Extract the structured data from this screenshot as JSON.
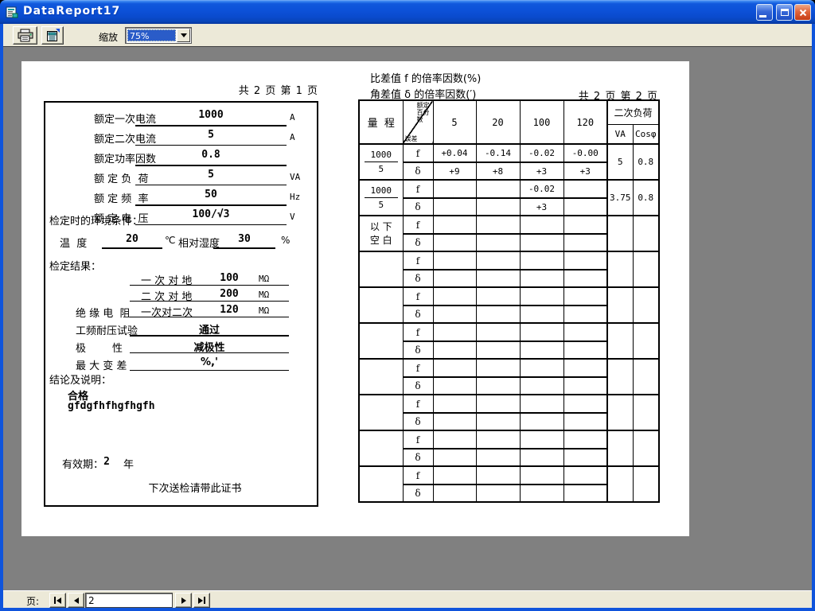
{
  "window": {
    "title": "DataReport17"
  },
  "toolbar": {
    "zoom_label": "缩放",
    "zoom_value": "75%"
  },
  "page1": {
    "indicator": "共 2 页 第 1 页",
    "rated_fields": [
      {
        "label": "额定一次电流",
        "value": "1000",
        "unit": "A"
      },
      {
        "label": "额定二次电流",
        "value": "5",
        "unit": "A"
      },
      {
        "label": "额定功率因数",
        "value": "0.8",
        "unit": ""
      },
      {
        "label": "额 定 负  荷",
        "value": "5",
        "unit": "VA"
      },
      {
        "label": "额 定 频  率",
        "value": "50",
        "unit": "Hz"
      },
      {
        "label": "额 定 电  压",
        "value": "100/√3",
        "unit": "V"
      }
    ],
    "env_title": "检定时的环境条件：",
    "env": {
      "temp_label": "温  度",
      "temp_value": "20",
      "temp_unit": "℃",
      "hum_label": "相对湿度",
      "hum_value": "30",
      "hum_unit": "%"
    },
    "result_title": "检定结果：",
    "insulation_label": "绝 缘 电  阻",
    "insulation_rows": [
      {
        "label": "一 次 对 地",
        "value": "100",
        "unit": "MΩ"
      },
      {
        "label": "二 次 对 地",
        "value": "200",
        "unit": "MΩ"
      },
      {
        "label": "一次对二次",
        "value": "120",
        "unit": "MΩ"
      }
    ],
    "result_rows": [
      {
        "label": "工频耐压试验",
        "value": "通过"
      },
      {
        "label": "极        性",
        "value": "减极性"
      },
      {
        "label": "最 大 变 差",
        "value": "%,'"
      }
    ],
    "conclusion_title": "结论及说明：",
    "conclusion_lines": [
      "合格",
      "gfdgfhfhgfhgfh"
    ],
    "validity_label": "有效期：",
    "validity_value": "2",
    "validity_unit": "年",
    "footer_note": "下次送检请带此证书"
  },
  "page2": {
    "title_line1": "比差值 f 的倍率因数(%)",
    "title_line2": "角差值 δ 的倍率因数(′)",
    "indicator": "共 2 页 第 2 页",
    "table": {
      "range_header": "量  程",
      "diag_top": "额定百分数",
      "diag_bottom": "误差",
      "percent_cols": [
        "5",
        "20",
        "100",
        "120"
      ],
      "load_header": "二次负荷",
      "load_cols": [
        "VA",
        "Cosφ"
      ],
      "f_label": "f",
      "d_label": "δ",
      "rows": [
        {
          "range_top": "1000",
          "range_bottom": "5",
          "f": [
            "+0.04",
            "-0.14",
            "-0.02",
            "-0.00"
          ],
          "d": [
            "+9",
            "+8",
            "+3",
            "+3"
          ],
          "va": "5",
          "cos": "0.8"
        },
        {
          "range_top": "1000",
          "range_bottom": "5",
          "f": [
            "",
            "",
            "-0.02",
            ""
          ],
          "d": [
            "",
            "",
            "+3",
            ""
          ],
          "va": "3.75",
          "cos": "0.8"
        },
        {
          "range_note": "以 下\n空 白",
          "f": [
            "",
            "",
            "",
            ""
          ],
          "d": [
            "",
            "",
            "",
            ""
          ],
          "va": "",
          "cos": ""
        },
        {
          "f": [
            "",
            "",
            "",
            ""
          ],
          "d": [
            "",
            "",
            "",
            ""
          ],
          "va": "",
          "cos": ""
        },
        {
          "f": [
            "",
            "",
            "",
            ""
          ],
          "d": [
            "",
            "",
            "",
            ""
          ],
          "va": "",
          "cos": ""
        },
        {
          "f": [
            "",
            "",
            "",
            ""
          ],
          "d": [
            "",
            "",
            "",
            ""
          ],
          "va": "",
          "cos": ""
        },
        {
          "f": [
            "",
            "",
            "",
            ""
          ],
          "d": [
            "",
            "",
            "",
            ""
          ],
          "va": "",
          "cos": ""
        },
        {
          "f": [
            "",
            "",
            "",
            ""
          ],
          "d": [
            "",
            "",
            "",
            ""
          ],
          "va": "",
          "cos": ""
        },
        {
          "f": [
            "",
            "",
            "",
            ""
          ],
          "d": [
            "",
            "",
            "",
            ""
          ],
          "va": "",
          "cos": ""
        },
        {
          "f": [
            "",
            "",
            "",
            ""
          ],
          "d": [
            "",
            "",
            "",
            ""
          ],
          "va": "",
          "cos": ""
        }
      ]
    }
  },
  "pager": {
    "label": "页:",
    "value": "2"
  }
}
